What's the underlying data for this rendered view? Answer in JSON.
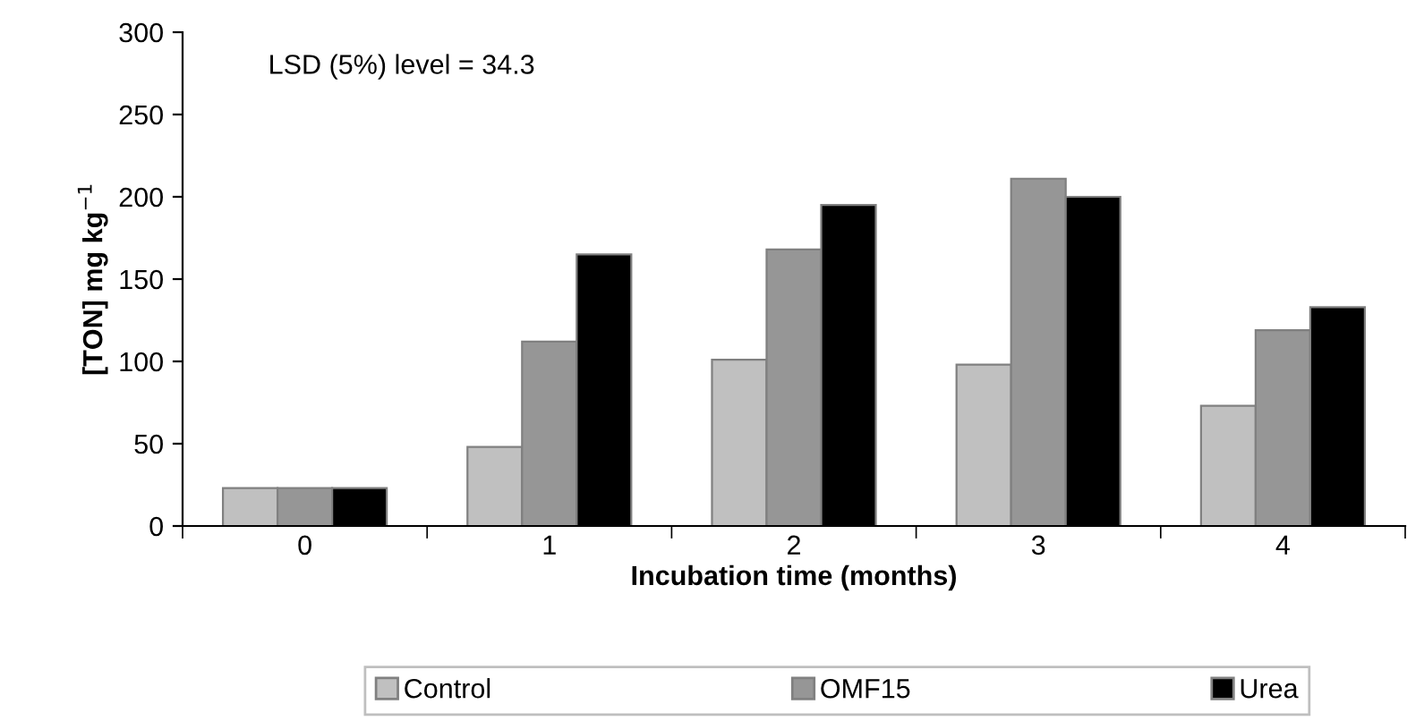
{
  "chart_data": {
    "type": "bar",
    "xlabel": "Incubation time (months)",
    "ylabel": "[TON] mg kg$^{−1}$",
    "categories": [
      "0",
      "1",
      "2",
      "3",
      "4"
    ],
    "series": [
      {
        "name": "Control",
        "color": "#c0c0c0",
        "values": [
          23,
          48,
          101,
          98,
          73
        ]
      },
      {
        "name": "OMF15",
        "color": "#969696",
        "values": [
          23,
          112,
          168,
          211,
          119
        ]
      },
      {
        "name": "Urea",
        "color": "#000000",
        "values": [
          23,
          165,
          195,
          200,
          133
        ]
      }
    ],
    "ylim": [
      0,
      300
    ],
    "yticks": [
      0,
      50,
      100,
      150,
      200,
      250,
      300
    ],
    "annotations": [
      "LSD (5%) level = 34.3"
    ],
    "grid": false,
    "legend": "bottom"
  }
}
